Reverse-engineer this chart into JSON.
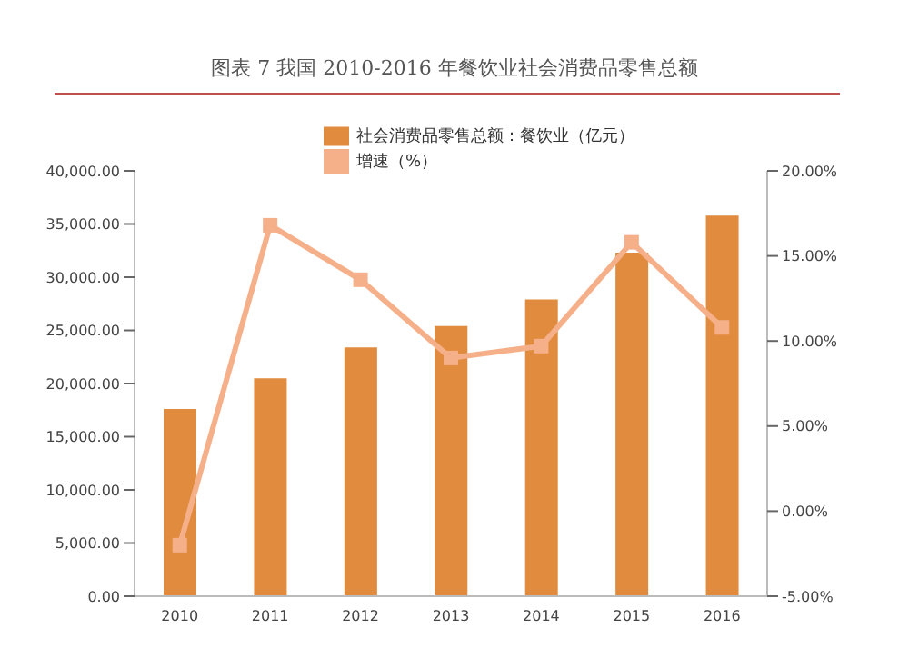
{
  "chart_data": {
    "type": "bar",
    "title": "图表 7 我国 2010-2016 年餐饮业社会消费品零售总额",
    "categories": [
      "2010",
      "2011",
      "2012",
      "2013",
      "2014",
      "2015",
      "2016"
    ],
    "series": [
      {
        "name": "社会消费品零售总额：餐饮业（亿元）",
        "color": "#e08b3d",
        "values": [
          17600,
          20500,
          23400,
          25400,
          27900,
          32300,
          35800
        ]
      },
      {
        "name": "增速（%）",
        "type": "line",
        "axis": "y2",
        "color": "#f5b08a",
        "marker": "square",
        "line_style": "solid",
        "values": [
          -2,
          16.8,
          13.6,
          9.0,
          9.7,
          15.8,
          10.8
        ]
      }
    ],
    "ylim": [
      0,
      40000
    ],
    "yticks": [
      {
        "value": 0,
        "label": "0.00"
      },
      {
        "value": 5000,
        "label": "5,000.00"
      },
      {
        "value": 10000,
        "label": "10,000.00"
      },
      {
        "value": 15000,
        "label": "15,000.00"
      },
      {
        "value": 20000,
        "label": "20,000.00"
      },
      {
        "value": 25000,
        "label": "25,000.00"
      },
      {
        "value": 30000,
        "label": "30,000.00"
      },
      {
        "value": 35000,
        "label": "35,000.00"
      },
      {
        "value": 40000,
        "label": "40,000.00"
      }
    ],
    "y2lim": [
      -5,
      20
    ],
    "y2ticks": [
      {
        "value": -5,
        "label": "-5.00%"
      },
      {
        "value": 0,
        "label": "0.00%"
      },
      {
        "value": 5,
        "label": "5.00%"
      },
      {
        "value": 10,
        "label": "10.00%"
      },
      {
        "value": 15,
        "label": "15.00%"
      },
      {
        "value": 20,
        "label": "20.00%"
      }
    ],
    "grid": false,
    "legend": "top"
  }
}
